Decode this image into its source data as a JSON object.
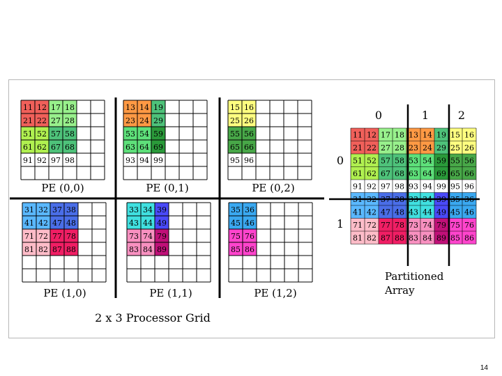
{
  "colors": {
    "11": "#f0605a",
    "12": "#f0605a",
    "21": "#f0605a",
    "22": "#f0605a",
    "17": "#98f08c",
    "18": "#98f08c",
    "27": "#98f08c",
    "28": "#98f08c",
    "51": "#b0f050",
    "52": "#b0f050",
    "61": "#b0f050",
    "62": "#b0f050",
    "57": "#4ec27a",
    "58": "#4ec27a",
    "67": "#4ec27a",
    "68": "#4ec27a",
    "13": "#ff9944",
    "14": "#ff9944",
    "23": "#ff9944",
    "24": "#ff9944",
    "19": "#4ec27a",
    "29": "#4ec27a",
    "53": "#5ee07a",
    "54": "#5ee07a",
    "63": "#5ee07a",
    "64": "#5ee07a",
    "59": "#2a9a3a",
    "69": "#2a9a3a",
    "15": "#ffff80",
    "16": "#ffff80",
    "25": "#ffff80",
    "26": "#ffff80",
    "55": "#48a848",
    "56": "#48a848",
    "65": "#48a848",
    "66": "#48a848",
    "31": "#5ab8ff",
    "32": "#5ab8ff",
    "41": "#5ab8ff",
    "42": "#5ab8ff",
    "37": "#4a6ee8",
    "38": "#4a6ee8",
    "47": "#4a6ee8",
    "48": "#4a6ee8",
    "71": "#ffbcc8",
    "72": "#ffbcc8",
    "81": "#ffbcc8",
    "82": "#ffbcc8",
    "77": "#f01e64",
    "78": "#f01e64",
    "87": "#f01e64",
    "88": "#f01e64",
    "33": "#40e0e0",
    "34": "#40e0e0",
    "43": "#40e0e0",
    "44": "#40e0e0",
    "39": "#4a4af8",
    "49": "#4a4af8",
    "73": "#f890c0",
    "74": "#f890c0",
    "83": "#f890c0",
    "84": "#f890c0",
    "79": "#c01078",
    "89": "#c01078",
    "35": "#3aa8f0",
    "36": "#3aa8f0",
    "45": "#3aa8f0",
    "46": "#3aa8f0",
    "75": "#ff44cc",
    "76": "#ff44cc",
    "85": "#ff44cc",
    "86": "#ff44cc"
  },
  "processors": [
    {
      "label": "PE (0,0)",
      "rows": [
        [
          "11",
          "12",
          "17",
          "18"
        ],
        [
          "21",
          "22",
          "27",
          "28"
        ],
        [
          "51",
          "52",
          "57",
          "58"
        ],
        [
          "61",
          "62",
          "67",
          "68"
        ],
        [
          "91",
          "92",
          "97",
          "98"
        ]
      ]
    },
    {
      "label": "PE (0,1)",
      "rows": [
        [
          "13",
          "14",
          "19"
        ],
        [
          "23",
          "24",
          "29"
        ],
        [
          "53",
          "54",
          "59"
        ],
        [
          "63",
          "64",
          "69"
        ],
        [
          "93",
          "94",
          "99"
        ]
      ]
    },
    {
      "label": "PE (0,2)",
      "rows": [
        [
          "15",
          "16"
        ],
        [
          "25",
          "26"
        ],
        [
          "55",
          "56"
        ],
        [
          "65",
          "66"
        ],
        [
          "95",
          "96"
        ]
      ]
    },
    {
      "label": "PE (1,0)",
      "rows": [
        [
          "31",
          "32",
          "37",
          "38"
        ],
        [
          "41",
          "42",
          "47",
          "48"
        ],
        [
          "71",
          "72",
          "77",
          "78"
        ],
        [
          "81",
          "82",
          "87",
          "88"
        ]
      ]
    },
    {
      "label": "PE (1,1)",
      "rows": [
        [
          "33",
          "34",
          "39"
        ],
        [
          "43",
          "44",
          "49"
        ],
        [
          "73",
          "74",
          "79"
        ],
        [
          "83",
          "84",
          "89"
        ]
      ]
    },
    {
      "label": "PE (1,2)",
      "rows": [
        [
          "35",
          "36"
        ],
        [
          "45",
          "46"
        ],
        [
          "75",
          "76"
        ],
        [
          "85",
          "86"
        ]
      ]
    }
  ],
  "grid_caption": "2 x 3 Processor Grid",
  "partitioned": {
    "col_labels": [
      "0",
      "1",
      "2"
    ],
    "row_labels": [
      "0",
      "1"
    ],
    "rows": [
      [
        "11",
        "12",
        "17",
        "18",
        "13",
        "14",
        "19",
        "15",
        "16"
      ],
      [
        "21",
        "22",
        "27",
        "28",
        "23",
        "24",
        "29",
        "25",
        "26"
      ],
      [
        "51",
        "52",
        "57",
        "58",
        "53",
        "54",
        "59",
        "55",
        "56"
      ],
      [
        "61",
        "62",
        "67",
        "68",
        "63",
        "64",
        "69",
        "65",
        "66"
      ],
      [
        "91",
        "92",
        "97",
        "98",
        "93",
        "94",
        "99",
        "95",
        "96"
      ],
      [
        "31",
        "32",
        "37",
        "38",
        "33",
        "34",
        "39",
        "35",
        "36"
      ],
      [
        "41",
        "42",
        "47",
        "48",
        "43",
        "44",
        "49",
        "45",
        "46"
      ],
      [
        "71",
        "72",
        "77",
        "78",
        "73",
        "74",
        "79",
        "75",
        "76"
      ],
      [
        "81",
        "82",
        "87",
        "88",
        "83",
        "84",
        "89",
        "85",
        "86"
      ]
    ],
    "caption_line1": "Partitioned",
    "caption_line2": "Array"
  },
  "page_number": "14"
}
